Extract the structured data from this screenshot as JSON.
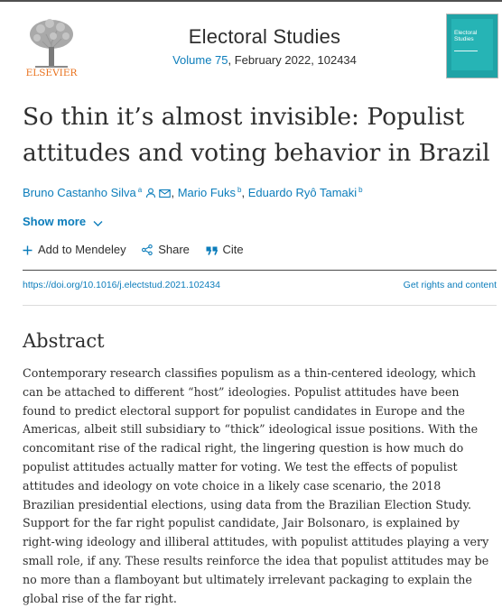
{
  "header": {
    "publisher_logo_text": "ELSEVIER",
    "journal_title": "Electoral Studies",
    "volume_link": "Volume 75",
    "issue_info": ", February 2022, 102434",
    "cover_title_line1": "Electoral",
    "cover_title_line2": "Studies"
  },
  "article": {
    "title": "So thin it’s almost invisible: Populist attitudes and voting behavior in Brazil"
  },
  "authors": [
    {
      "name": "Bruno Castanho Silva",
      "sup": "a"
    },
    {
      "name": "Mario Fuks",
      "sup": "b"
    },
    {
      "name": "Eduardo Ryô Tamaki",
      "sup": "b"
    }
  ],
  "author_separator": ",",
  "show_more_label": "Show more",
  "actions": {
    "add_to_mendeley": "Add to Mendeley",
    "share": "Share",
    "cite": "Cite"
  },
  "links": {
    "doi": "https://doi.org/10.1016/j.electstud.2021.102434",
    "rights": "Get rights and content"
  },
  "abstract": {
    "heading": "Abstract",
    "text": "Contemporary research classifies populism as a thin-centered ideology, which can be attached to different “host” ideologies. Populist attitudes have been found to predict electoral support for populist candidates in Europe and the Americas, albeit still subsidiary to “thick” ideological issue positions. With the concomitant rise of the radical right, the lingering question is how much do populist attitudes actually matter for voting. We test the effects of populist attitudes and ideology on vote choice in a likely case scenario, the 2018 Brazilian presidential elections, using data from the Brazilian Election Study. Support for the far right populist candidate, Jair Bolsonaro, is explained by right-wing ideology and illiberal attitudes, with populist attitudes playing a very small role, if any. These results reinforce the idea that populist attitudes may be no more than a flamboyant but ultimately irrelevant packaging to explain the global rise of the far right."
  },
  "icons": {
    "publisher_logo": "elsevier-tree-logo",
    "person": "person-icon",
    "email": "email-icon",
    "chevron": "chevron-down-icon",
    "plus": "plus-icon",
    "share": "share-icon",
    "cite": "quote-icon"
  },
  "colors": {
    "link": "#0c7dbb",
    "elsevier_orange": "#e9711c",
    "cover_teal": "#1fa3a6"
  }
}
